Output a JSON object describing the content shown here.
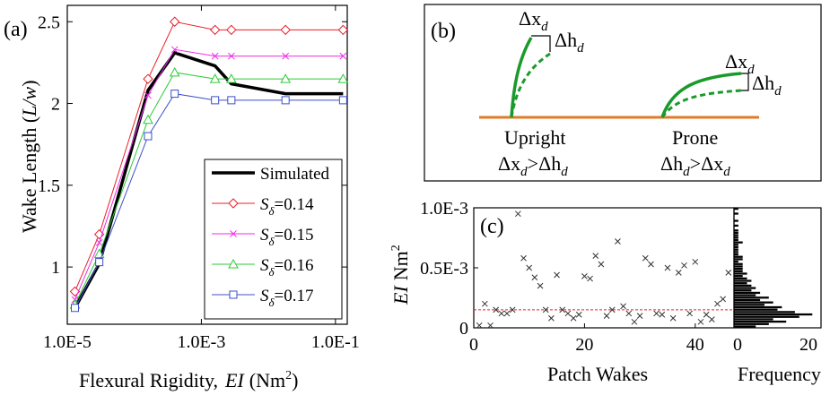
{
  "panel_a": {
    "label": "(a)",
    "ylabel_prefix": "Wake Length (",
    "ylabel_math": "L/w",
    "ylabel_suffix": ")",
    "xlabel_prefix": "Flexural Rigidity,",
    "xlabel_math": "EI",
    "xlabel_unit": "(Nm",
    "xlabel_sup": "2",
    "xlabel_close": ")"
  },
  "panel_b": {
    "label": "(b)",
    "upright_label": "Upright",
    "prone_label": "Prone",
    "dx_base": "Δx",
    "dh_base": "Δh",
    "sub_d": "d",
    "gt": ">",
    "colors": {
      "blade": "#1a9a2a",
      "ground": "#e07b2a"
    }
  },
  "panel_c": {
    "label": "(c)",
    "xlabel": "Patch Wakes",
    "ylabel_math": "EI",
    "ylabel_unit": "Nm",
    "ylabel_sup": "2",
    "hist_xlabel": "Frequency"
  },
  "chart_data": [
    {
      "type": "line",
      "xlabel": "Flexural Rigidity, EI (Nm2)",
      "ylabel": "Wake Length (L/w)",
      "xscale": "log",
      "xlim": [
        1e-05,
        0.15
      ],
      "ylim": [
        0.65,
        2.6
      ],
      "xticks": [
        1e-05,
        0.001,
        0.1
      ],
      "xtick_labels": [
        "1.0E-5",
        "1.0E-3",
        "1.0E-1"
      ],
      "yticks": [
        1,
        1.5,
        2,
        2.5
      ],
      "ytick_labels": [
        "1",
        "1.5",
        "2",
        "2.5"
      ],
      "legend_position": "lower-right",
      "series": [
        {
          "name": "Simulated",
          "color": "#000000",
          "marker": "none",
          "x": [
            1.3e-05,
            3e-05,
            0.00016,
            0.0004,
            0.0016,
            0.0028,
            0.018,
            0.13
          ],
          "y": [
            0.75,
            1.02,
            2.08,
            2.31,
            2.23,
            2.12,
            2.06,
            2.06
          ]
        },
        {
          "name": "Sδ=0.14",
          "sub": "δ",
          "value": "=0.14",
          "color": "#e8202a",
          "marker": "diamond",
          "x": [
            1.3e-05,
            3e-05,
            0.00016,
            0.0004,
            0.0016,
            0.0028,
            0.018,
            0.13
          ],
          "y": [
            0.85,
            1.2,
            2.15,
            2.5,
            2.45,
            2.45,
            2.45,
            2.45
          ]
        },
        {
          "name": "Sδ=0.15",
          "sub": "δ",
          "value": "=0.15",
          "color": "#ee2ee8",
          "marker": "x",
          "x": [
            1.3e-05,
            3e-05,
            0.00016,
            0.0004,
            0.0016,
            0.0028,
            0.018,
            0.13
          ],
          "y": [
            0.8,
            1.15,
            2.05,
            2.33,
            2.29,
            2.29,
            2.29,
            2.29
          ]
        },
        {
          "name": "Sδ=0.16",
          "sub": "δ",
          "value": "=0.16",
          "color": "#2bcb35",
          "marker": "triangle",
          "x": [
            1.3e-05,
            3e-05,
            0.00016,
            0.0004,
            0.0016,
            0.0028,
            0.018,
            0.13
          ],
          "y": [
            0.77,
            1.08,
            1.9,
            2.19,
            2.15,
            2.15,
            2.15,
            2.15
          ]
        },
        {
          "name": "Sδ=0.17",
          "sub": "δ",
          "value": "=0.17",
          "color": "#3d4fc9",
          "marker": "square",
          "x": [
            1.3e-05,
            3e-05,
            0.00016,
            0.0004,
            0.0016,
            0.0028,
            0.018,
            0.13
          ],
          "y": [
            0.75,
            1.03,
            1.8,
            2.06,
            2.02,
            2.02,
            2.02,
            2.02
          ]
        }
      ]
    },
    {
      "type": "scatter",
      "xlabel": "Patch Wakes",
      "ylabel": "EI Nm2",
      "xlim": [
        0,
        47
      ],
      "ylim": [
        0,
        0.001
      ],
      "xticks": [
        0,
        20,
        40
      ],
      "xtick_labels": [
        "0",
        "20",
        "40"
      ],
      "yticks": [
        0,
        0.0005,
        0.001
      ],
      "ytick_labels": [
        "0",
        "0.5E-3",
        "1.0E-3"
      ],
      "reference_line": {
        "y": 0.00015,
        "color": "#e8202a",
        "style": "dashed"
      },
      "x": [
        1,
        2,
        3,
        4,
        5,
        6,
        7,
        8,
        9,
        10,
        11,
        12,
        13,
        14,
        15,
        16,
        17,
        18,
        19,
        20,
        21,
        22,
        23,
        24,
        25,
        26,
        27,
        28,
        29,
        30,
        31,
        32,
        33,
        34,
        35,
        36,
        37,
        38,
        39,
        40,
        41,
        42,
        43,
        44,
        45,
        46
      ],
      "y": [
        2e-05,
        0.0002,
        2e-05,
        0.00015,
        0.00012,
        0.00012,
        0.00015,
        0.00095,
        0.00058,
        0.0005,
        0.00042,
        0.00035,
        0.00015,
        8e-05,
        0.00044,
        0.00015,
        0.00012,
        8e-05,
        0.00011,
        0.00043,
        0.00041,
        0.0006,
        0.00053,
        0.0001,
        0.00015,
        0.00072,
        0.00018,
        0.00012,
        5e-05,
        0.0001,
        0.00058,
        0.00053,
        0.00012,
        0.00011,
        0.0005,
        8e-05,
        0.00046,
        0.00052,
        0.00012,
        0.00055,
        5e-05,
        0.00011,
        7e-05,
        0.0002,
        0.00024,
        0.00046
      ]
    },
    {
      "type": "bar",
      "orientation": "horizontal",
      "xlabel": "Frequency",
      "xlim": [
        0,
        20
      ],
      "xticks": [
        0,
        20
      ],
      "xtick_labels": [
        "0",
        "20"
      ],
      "bins_y_max": [
        2e-05,
        4e-05,
        6e-05,
        8e-05,
        0.0001,
        0.00012,
        0.00014,
        0.00016,
        0.00018,
        0.0002,
        0.00022,
        0.00024,
        0.00026,
        0.00028,
        0.0003,
        0.00032,
        0.00034,
        0.00036,
        0.00038,
        0.0004,
        0.00042,
        0.00044,
        0.00046,
        0.00048,
        0.0005,
        0.00052,
        0.00054,
        0.00056,
        0.00058,
        0.0006,
        0.00062,
        0.00064,
        0.00066,
        0.00068,
        0.0007,
        0.00072,
        0.00074,
        0.00076,
        0.00078,
        0.0008,
        0.00082,
        0.00084,
        0.00086,
        0.00088,
        0.0009,
        0.00092,
        0.00094,
        0.00096,
        0.00098,
        0.001
      ],
      "values": [
        5,
        8,
        12,
        9,
        15,
        18,
        14,
        10,
        11,
        7,
        9,
        6,
        8,
        5,
        6,
        4,
        5,
        4,
        3,
        4,
        3,
        2,
        3,
        2,
        2,
        2,
        2,
        1,
        2,
        2,
        1,
        1,
        1,
        1,
        1,
        2,
        1,
        1,
        1,
        1,
        1,
        0,
        1,
        0,
        1,
        0,
        0,
        1,
        0,
        1
      ]
    }
  ]
}
